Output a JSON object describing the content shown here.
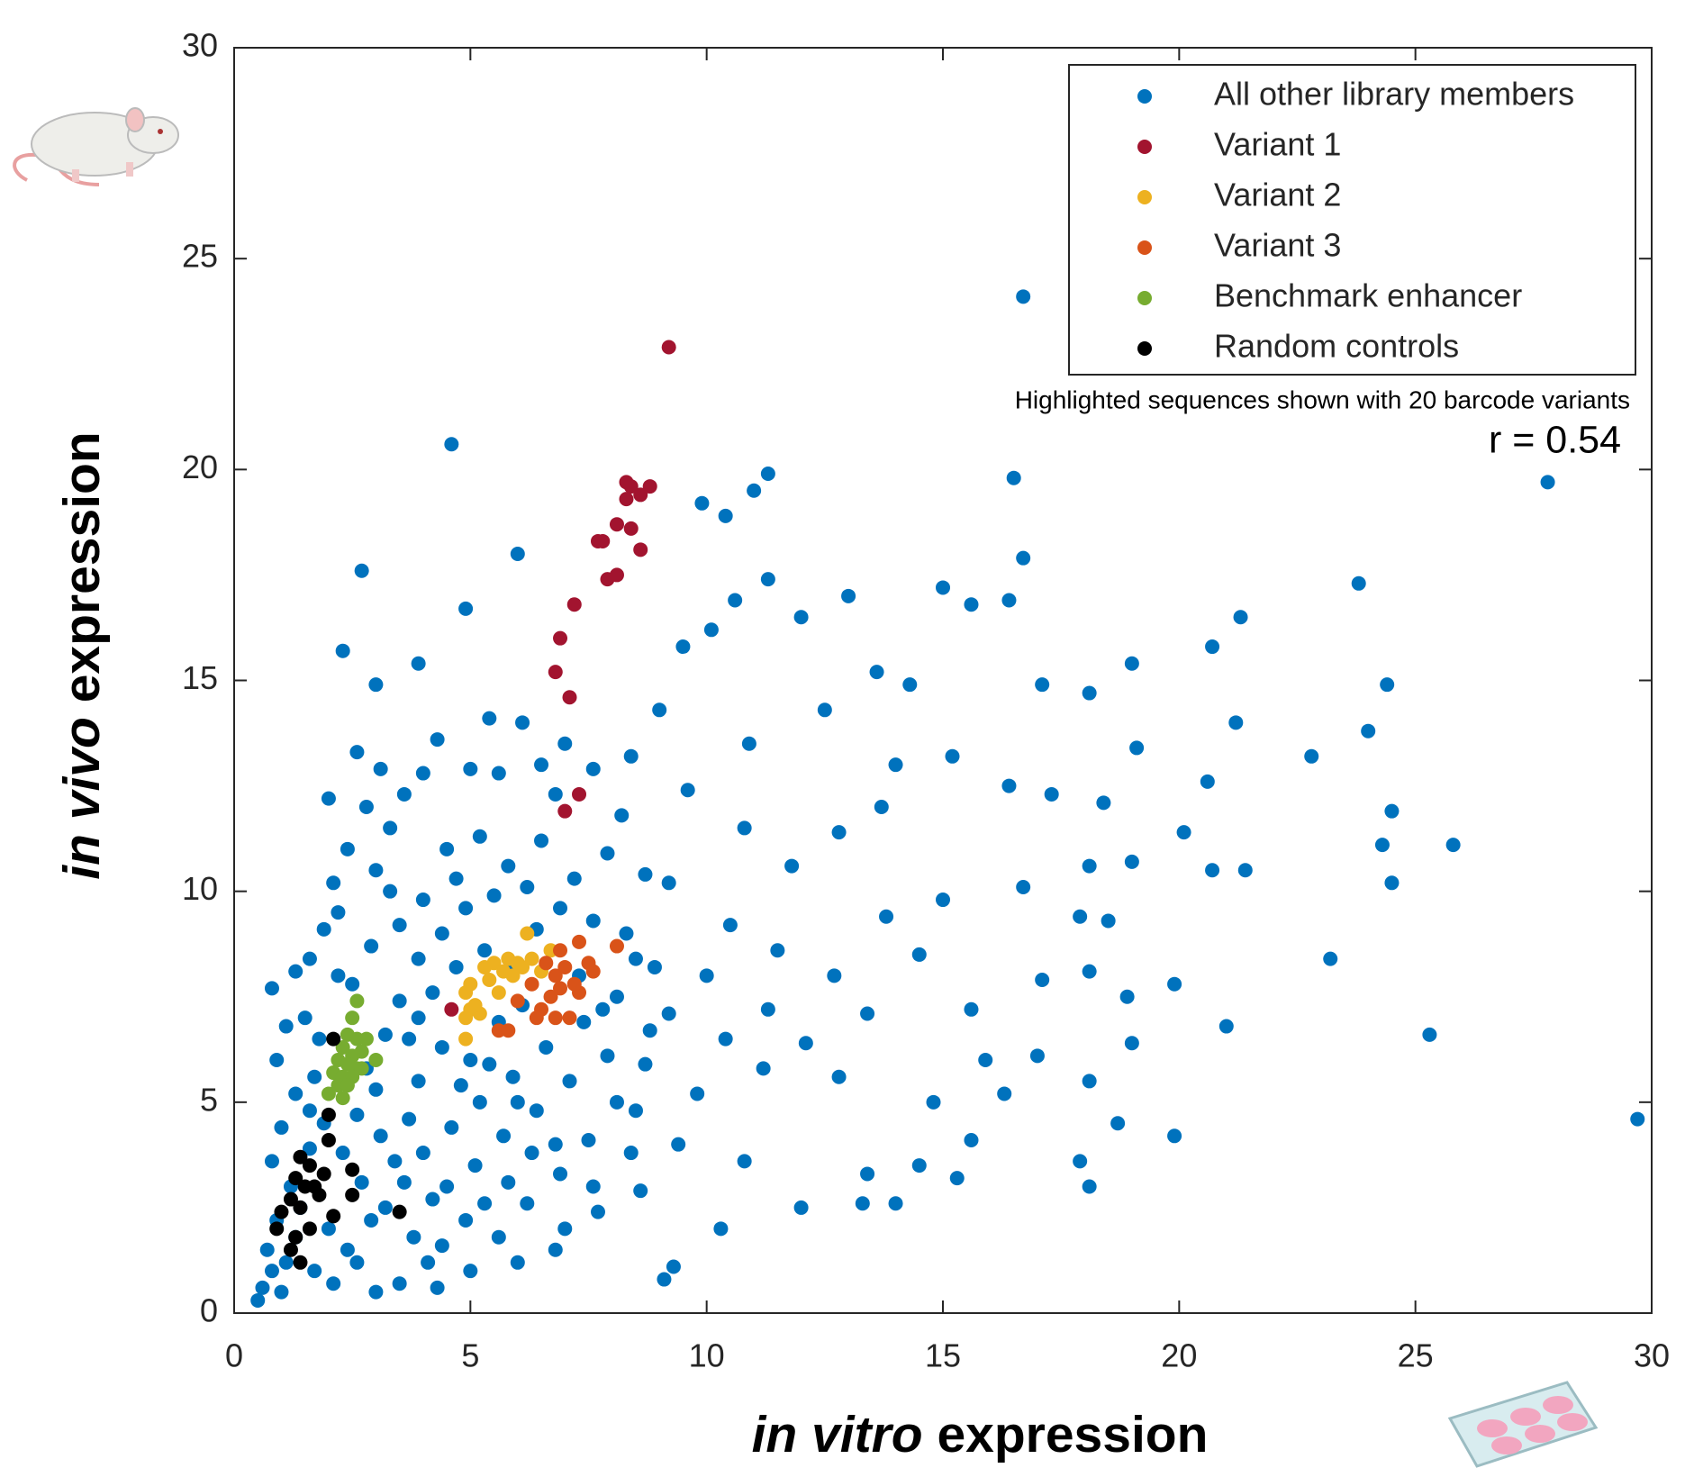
{
  "chart_data": {
    "type": "scatter",
    "xlabel": [
      "in vitro",
      "expression"
    ],
    "ylabel": [
      "in vivo",
      "expression"
    ],
    "annotations": [
      "Highlighted sequences shown with 20 barcode variants",
      "r = 0.54"
    ],
    "xlim": [
      0,
      30
    ],
    "ylim": [
      0,
      30
    ],
    "xticks": [
      0,
      5,
      10,
      15,
      20,
      25,
      30
    ],
    "yticks": [
      0,
      5,
      10,
      15,
      20,
      25,
      30
    ],
    "grid": false,
    "legend": "upper right",
    "series": [
      {
        "name": "All other library members",
        "color": "#0072bd",
        "x": [
          16.7,
          4.6,
          11.3,
          16.5,
          27.8,
          9.9,
          11.0,
          10.4,
          16.7,
          6.0,
          2.7,
          23.8,
          15.0,
          11.3,
          13.0,
          16.4,
          15.6,
          21.3,
          20.7,
          12.0,
          10.6,
          4.9,
          2.3,
          3.9,
          19.0,
          24.4,
          17.1,
          14.3,
          13.6,
          18.1,
          21.2,
          24.0,
          19.1,
          22.8,
          15.2,
          20.6,
          17.3,
          16.4,
          18.4,
          24.5,
          25.8,
          24.3,
          20.1,
          20.7,
          21.4,
          24.5,
          19.0,
          18.1,
          16.7,
          18.5,
          17.9,
          23.2,
          18.1,
          17.1,
          19.9,
          18.9,
          15.6,
          21.0,
          25.3,
          19.0,
          17.0,
          18.1,
          16.3,
          18.7,
          19.9,
          29.7,
          15.6,
          17.9,
          18.1,
          14.5,
          15.3,
          13.4,
          12.0,
          10.3,
          9.1,
          9.3,
          14.0,
          13.3,
          15.9,
          14.8,
          12.8,
          12.1,
          13.4,
          11.3,
          12.7,
          14.5,
          13.8,
          15.0,
          11.8,
          12.8,
          13.7,
          14.0,
          10.9,
          12.5,
          9.0,
          9.5,
          10.1,
          8.4,
          9.6,
          10.8,
          9.2,
          10.5,
          11.5,
          10.0,
          9.2,
          10.4,
          11.2,
          9.8,
          8.5,
          9.4,
          10.8,
          8.6,
          7.7,
          6.8,
          0.5,
          0.6,
          0.8,
          0.7,
          1.0,
          1.1,
          0.9,
          1.2,
          0.8,
          1.0,
          1.3,
          0.9,
          0.8,
          1.5,
          1.6,
          1.9,
          2.2,
          2.1,
          2.4,
          2.0,
          3.0,
          2.8,
          3.3,
          3.6,
          4.0,
          3.0,
          2.6,
          3.1,
          4.3,
          4.5,
          5.4,
          6.1,
          5.6,
          5.0,
          6.5,
          7.0,
          6.8,
          7.6,
          8.2,
          7.9,
          7.2,
          6.5,
          5.8,
          5.2,
          4.7,
          4.0,
          3.5,
          2.9,
          2.5,
          1.8,
          1.7,
          1.9,
          1.6,
          1.4,
          1.3,
          1.7,
          2.1,
          2.6,
          3.0,
          3.5,
          4.3,
          5.0,
          4.4,
          3.8,
          3.2,
          2.7,
          2.3,
          2.6,
          3.0,
          3.2,
          3.5,
          3.9,
          4.4,
          4.9,
          5.5,
          6.2,
          6.9,
          7.6,
          8.3,
          8.7,
          8.9,
          8.1,
          7.4,
          6.6,
          5.9,
          5.2,
          4.6,
          4.0,
          3.6,
          4.2,
          4.9,
          5.6,
          6.2,
          6.9,
          7.5,
          8.1,
          8.7,
          8.8,
          7.9,
          7.1,
          6.4,
          5.7,
          5.1,
          4.5,
          3.9,
          4.4,
          5.0,
          5.6,
          6.1,
          4.2,
          3.7,
          3.1,
          2.0,
          2.4,
          5.3,
          4.7,
          6.4,
          7.3,
          7.8,
          3.3,
          2.2,
          1.3,
          1.1,
          1.6,
          6.8,
          7.6,
          8.4,
          5.8,
          4.8,
          5.4,
          6.0,
          3.4,
          2.9,
          3.7,
          4.1,
          5.3,
          6.0,
          7.0,
          6.3,
          2.8,
          3.9,
          5.9,
          8.5
        ],
        "values": [
          24.1,
          20.6,
          19.9,
          19.8,
          19.7,
          19.2,
          19.5,
          18.9,
          17.9,
          18.0,
          17.6,
          17.3,
          17.2,
          17.4,
          17.0,
          16.9,
          16.8,
          16.5,
          15.8,
          16.5,
          16.9,
          16.7,
          15.7,
          15.4,
          15.4,
          14.9,
          14.9,
          14.9,
          15.2,
          14.7,
          14.0,
          13.8,
          13.4,
          13.2,
          13.2,
          12.6,
          12.3,
          12.5,
          12.1,
          11.9,
          11.1,
          11.1,
          11.4,
          10.5,
          10.5,
          10.2,
          10.7,
          10.6,
          10.1,
          9.3,
          9.4,
          8.4,
          8.1,
          7.9,
          7.8,
          7.5,
          7.2,
          6.8,
          6.6,
          6.4,
          6.1,
          5.5,
          5.2,
          4.5,
          4.2,
          4.6,
          4.1,
          3.6,
          3.0,
          3.5,
          3.2,
          3.3,
          2.5,
          2.0,
          0.8,
          1.1,
          2.6,
          2.6,
          6.0,
          5.0,
          5.6,
          6.4,
          7.1,
          7.2,
          8.0,
          8.5,
          9.4,
          9.8,
          10.6,
          11.4,
          12.0,
          13.0,
          13.5,
          14.3,
          14.3,
          15.8,
          16.2,
          13.2,
          12.4,
          11.5,
          10.2,
          9.2,
          8.6,
          8.0,
          7.1,
          6.5,
          5.8,
          5.2,
          4.8,
          4.0,
          3.6,
          2.9,
          2.4,
          1.5,
          0.3,
          0.6,
          1.0,
          1.5,
          0.5,
          1.2,
          2.2,
          3.0,
          3.6,
          4.4,
          5.2,
          6.0,
          7.7,
          7.0,
          8.4,
          9.1,
          8.0,
          10.2,
          11.0,
          12.2,
          10.5,
          12.0,
          11.5,
          12.3,
          12.8,
          14.9,
          13.3,
          12.9,
          13.6,
          11.0,
          14.1,
          14.0,
          12.8,
          12.9,
          13.0,
          13.5,
          12.3,
          12.9,
          11.8,
          10.9,
          10.3,
          11.2,
          10.6,
          11.3,
          10.3,
          9.8,
          9.2,
          8.7,
          7.8,
          6.5,
          5.6,
          4.5,
          3.9,
          2.5,
          1.8,
          1.0,
          0.7,
          1.2,
          0.5,
          0.7,
          0.6,
          1.0,
          1.6,
          1.8,
          2.5,
          3.1,
          3.8,
          4.7,
          5.3,
          6.6,
          7.4,
          8.4,
          9.0,
          9.6,
          9.9,
          10.1,
          9.6,
          9.3,
          9.0,
          10.4,
          8.2,
          7.5,
          6.9,
          6.3,
          5.6,
          5.0,
          4.4,
          3.8,
          3.1,
          2.7,
          2.2,
          1.8,
          2.6,
          3.3,
          4.1,
          5.0,
          5.9,
          6.7,
          6.1,
          5.5,
          4.8,
          4.2,
          3.5,
          3.0,
          5.5,
          6.3,
          6.0,
          6.9,
          7.3,
          7.6,
          6.5,
          4.2,
          2.0,
          1.5,
          8.6,
          8.2,
          9.1,
          8.0,
          7.2,
          10.0,
          9.5,
          8.1,
          6.8,
          4.8,
          4.0,
          3.0,
          3.8,
          3.1,
          5.4,
          5.9,
          5.0,
          3.6,
          2.2,
          4.6,
          1.2,
          2.6,
          1.2,
          2.0,
          3.8,
          5.8,
          7.0,
          8.2,
          8.4
        ]
      },
      {
        "name": "Variant 1",
        "color": "#a2142f",
        "x": [
          9.2,
          8.3,
          8.4,
          8.8,
          8.6,
          8.3,
          8.1,
          8.4,
          7.7,
          7.8,
          8.6,
          7.9,
          8.1,
          7.2,
          6.9,
          6.8,
          7.1,
          7.0,
          4.6,
          7.3
        ],
        "values": [
          22.9,
          19.7,
          19.6,
          19.6,
          19.4,
          19.3,
          18.7,
          18.6,
          18.3,
          18.3,
          18.1,
          17.4,
          17.5,
          16.8,
          16.0,
          15.2,
          14.6,
          11.9,
          7.2,
          12.3
        ]
      },
      {
        "name": "Variant 2",
        "color": "#edb120",
        "x": [
          6.2,
          6.7,
          5.3,
          5.5,
          5.8,
          6.0,
          6.3,
          5.0,
          4.9,
          5.4,
          5.9,
          6.1,
          5.0,
          5.2,
          4.9,
          5.6,
          4.9,
          6.5,
          5.1,
          5.7
        ],
        "values": [
          9.0,
          8.6,
          8.2,
          8.3,
          8.4,
          8.3,
          8.4,
          7.8,
          7.6,
          7.9,
          8.0,
          8.2,
          7.2,
          7.1,
          7.0,
          7.6,
          6.5,
          8.1,
          7.3,
          8.1
        ]
      },
      {
        "name": "Variant 3",
        "color": "#d95319",
        "x": [
          7.3,
          8.1,
          6.9,
          6.6,
          7.5,
          6.8,
          7.0,
          7.6,
          6.3,
          6.9,
          7.3,
          6.0,
          6.5,
          6.8,
          7.1,
          6.4,
          5.6,
          5.8,
          6.7,
          7.2
        ],
        "values": [
          8.8,
          8.7,
          8.6,
          8.3,
          8.3,
          8.0,
          8.2,
          8.1,
          7.8,
          7.7,
          7.6,
          7.4,
          7.2,
          7.0,
          7.0,
          7.0,
          6.7,
          6.7,
          7.5,
          7.8
        ]
      },
      {
        "name": "Benchmark enhancer",
        "color": "#77ac30",
        "x": [
          2.6,
          2.5,
          2.4,
          2.6,
          2.8,
          2.3,
          2.5,
          2.7,
          3.0,
          2.2,
          2.4,
          2.6,
          2.1,
          2.3,
          2.5,
          2.2,
          2.0,
          2.3,
          2.4,
          2.7
        ],
        "values": [
          7.4,
          7.0,
          6.6,
          6.5,
          6.5,
          6.3,
          6.1,
          6.2,
          6.0,
          6.0,
          5.9,
          5.8,
          5.7,
          5.6,
          5.6,
          5.4,
          5.2,
          5.1,
          5.4,
          5.8
        ]
      },
      {
        "name": "Random controls",
        "color": "#000000",
        "x": [
          2.1,
          2.0,
          2.0,
          1.4,
          1.6,
          1.9,
          1.3,
          1.5,
          2.5,
          1.7,
          1.2,
          1.8,
          2.5,
          1.4,
          3.5,
          1.0,
          2.1,
          1.6,
          1.3,
          1.4,
          0.9,
          1.2
        ],
        "values": [
          6.5,
          4.7,
          4.1,
          3.7,
          3.5,
          3.3,
          3.2,
          3.0,
          3.4,
          3.0,
          2.7,
          2.8,
          2.8,
          2.5,
          2.4,
          2.4,
          2.3,
          2.0,
          1.8,
          1.2,
          2.0,
          1.5
        ]
      }
    ]
  }
}
